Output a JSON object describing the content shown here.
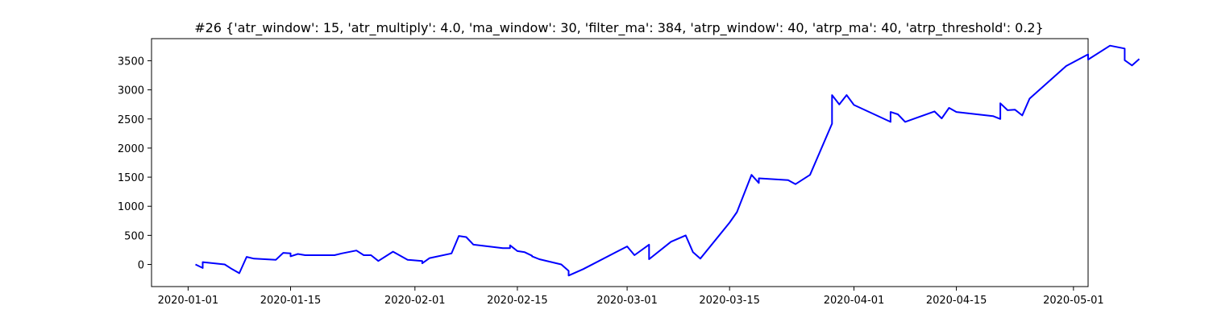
{
  "chart_data": {
    "type": "line",
    "title": "#26 {'atr_window': 15, 'atr_multiply': 4.0, 'ma_window': 30, 'filter_ma': 384, 'atrp_window': 40, 'atrp_ma': 40, 'atrp_threshold': 0.2}",
    "xlabel": "",
    "ylabel": "",
    "x_axis_type": "date",
    "xlim": [
      "2019-12-27",
      "2020-05-03"
    ],
    "ylim": [
      -380,
      3880
    ],
    "grid": false,
    "legend": "none",
    "x_ticks": [
      "2020-01-01",
      "2020-01-15",
      "2020-02-01",
      "2020-02-15",
      "2020-03-01",
      "2020-03-15",
      "2020-04-01",
      "2020-04-15",
      "2020-05-01"
    ],
    "y_ticks": [
      0,
      500,
      1000,
      1500,
      2000,
      2500,
      3000,
      3500
    ],
    "y_tick_labels": [
      "0",
      "500",
      "1000",
      "1500",
      "2000",
      "2500",
      "3000",
      "3500"
    ],
    "series": [
      {
        "color": "#0000ff",
        "points": [
          [
            "2020-01-02",
            0
          ],
          [
            "2020-01-03",
            -60
          ],
          [
            "2020-01-03",
            40
          ],
          [
            "2020-01-06",
            0
          ],
          [
            "2020-01-07",
            -80
          ],
          [
            "2020-01-08",
            -150
          ],
          [
            "2020-01-09",
            130
          ],
          [
            "2020-01-10",
            100
          ],
          [
            "2020-01-13",
            80
          ],
          [
            "2020-01-14",
            200
          ],
          [
            "2020-01-15",
            190
          ],
          [
            "2020-01-15",
            140
          ],
          [
            "2020-01-16",
            180
          ],
          [
            "2020-01-17",
            160
          ],
          [
            "2020-01-21",
            160
          ],
          [
            "2020-01-22",
            190
          ],
          [
            "2020-01-24",
            240
          ],
          [
            "2020-01-25",
            160
          ],
          [
            "2020-01-26",
            160
          ],
          [
            "2020-01-27",
            60
          ],
          [
            "2020-01-29",
            220
          ],
          [
            "2020-01-31",
            80
          ],
          [
            "2020-02-02",
            60
          ],
          [
            "2020-02-02",
            20
          ],
          [
            "2020-02-03",
            110
          ],
          [
            "2020-02-06",
            190
          ],
          [
            "2020-02-07",
            490
          ],
          [
            "2020-02-08",
            470
          ],
          [
            "2020-02-09",
            340
          ],
          [
            "2020-02-13",
            280
          ],
          [
            "2020-02-14",
            280
          ],
          [
            "2020-02-14",
            330
          ],
          [
            "2020-02-15",
            230
          ],
          [
            "2020-02-16",
            210
          ],
          [
            "2020-02-17",
            150
          ],
          [
            "2020-02-17",
            140
          ],
          [
            "2020-02-18",
            90
          ],
          [
            "2020-02-21",
            0
          ],
          [
            "2020-02-22",
            -110
          ],
          [
            "2020-02-22",
            -190
          ],
          [
            "2020-02-24",
            -80
          ],
          [
            "2020-03-01",
            310
          ],
          [
            "2020-03-02",
            160
          ],
          [
            "2020-03-04",
            340
          ],
          [
            "2020-03-04",
            90
          ],
          [
            "2020-03-07",
            390
          ],
          [
            "2020-03-09",
            500
          ],
          [
            "2020-03-10",
            210
          ],
          [
            "2020-03-11",
            100
          ],
          [
            "2020-03-15",
            720
          ],
          [
            "2020-03-16",
            900
          ],
          [
            "2020-03-18",
            1540
          ],
          [
            "2020-03-19",
            1400
          ],
          [
            "2020-03-19",
            1480
          ],
          [
            "2020-03-23",
            1450
          ],
          [
            "2020-03-24",
            1380
          ],
          [
            "2020-03-26",
            1540
          ],
          [
            "2020-03-29",
            2420
          ],
          [
            "2020-03-29",
            2910
          ],
          [
            "2020-03-30",
            2750
          ],
          [
            "2020-03-31",
            2910
          ],
          [
            "2020-04-01",
            2740
          ],
          [
            "2020-04-06",
            2450
          ],
          [
            "2020-04-06",
            2620
          ],
          [
            "2020-04-07",
            2580
          ],
          [
            "2020-04-08",
            2450
          ],
          [
            "2020-04-12",
            2630
          ],
          [
            "2020-04-13",
            2510
          ],
          [
            "2020-04-14",
            2690
          ],
          [
            "2020-04-15",
            2620
          ],
          [
            "2020-04-20",
            2550
          ],
          [
            "2020-04-21",
            2500
          ],
          [
            "2020-04-21",
            2770
          ],
          [
            "2020-04-22",
            2650
          ],
          [
            "2020-04-23",
            2660
          ],
          [
            "2020-04-24",
            2560
          ],
          [
            "2020-04-25",
            2850
          ],
          [
            "2020-04-30",
            3410
          ],
          [
            "2020-05-03",
            3610
          ],
          [
            "2020-05-03",
            3520
          ],
          [
            "2020-05-06",
            3760
          ],
          [
            "2020-05-08",
            3710
          ],
          [
            "2020-05-08",
            3510
          ],
          [
            "2020-05-09",
            3420
          ],
          [
            "2020-05-10",
            3530
          ]
        ]
      }
    ]
  }
}
